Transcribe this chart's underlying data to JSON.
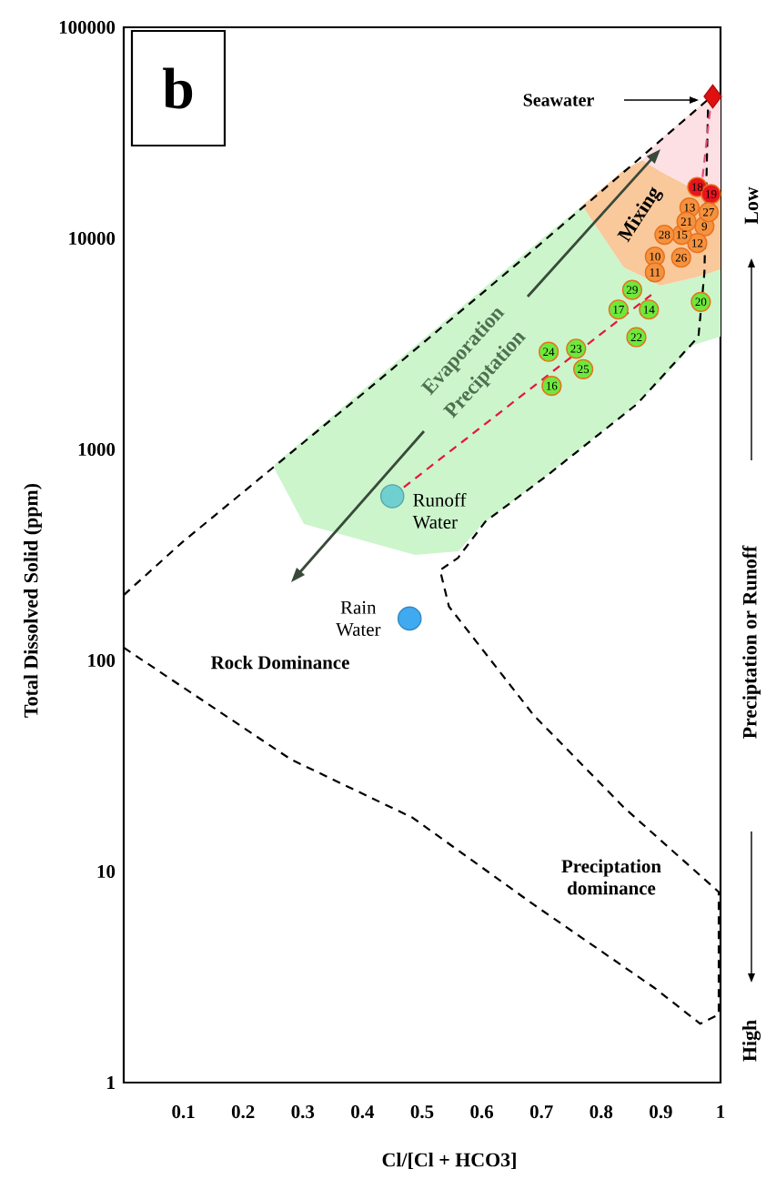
{
  "chart_data": {
    "type": "scatter",
    "xlabel": "Cl/[Cl + HCO3]",
    "ylabel": "Total Dissolved Solid (ppm)",
    "y2label": "Preciptation or Runoff",
    "xlim": [
      0,
      1
    ],
    "ylim": [
      1,
      100000
    ],
    "xticks": [
      0.1,
      0.2,
      0.3,
      0.4,
      0.5,
      0.6,
      0.7,
      0.8,
      0.9,
      1
    ],
    "yticks": [
      1,
      10,
      100,
      1000,
      10000,
      100000
    ],
    "log": "y",
    "series": [
      {
        "type": "area",
        "color": "#ccf5cc",
        "x": [
          0.253,
          0.302,
          0.488,
          0.561,
          0.601,
          0.707,
          0.768,
          0.838,
          0.899,
          0.951,
          1.0
        ],
        "values": [
          null,
          null,
          null,
          null,
          null,
          null,
          null,
          null,
          null,
          null,
          null
        ],
        "lower": [
          804,
          443,
          316,
          329,
          443,
          743,
          1020,
          1460,
          2100,
          3100,
          3420
        ],
        "upper": [
          853,
          1110,
          3090,
          4610,
          5740,
          10300,
          14300,
          7280,
          5970,
          6460,
          7140
        ]
      },
      {
        "type": "area",
        "color": "#f9c89b",
        "x": [
          0.768,
          0.838,
          0.869,
          0.899,
          0.951,
          0.982,
          1.0
        ],
        "values": [
          null,
          null,
          null,
          null,
          null,
          null,
          null
        ],
        "lower": [
          14300,
          7280,
          6590,
          5970,
          6460,
          6860,
          7140
        ],
        "upper": [
          14300,
          21100,
          23500,
          20800,
          17400,
          15200,
          15200
        ]
      },
      {
        "type": "area",
        "color": "#fde0e3",
        "x": [
          0.869,
          0.899,
          0.951,
          0.985,
          1.0
        ],
        "values": [
          null,
          null,
          null,
          null,
          null
        ],
        "lower": [
          23500,
          20800,
          17400,
          15200,
          15200
        ],
        "upper": [
          23500,
          29500,
          39300,
          47000,
          47000
        ]
      },
      {
        "type": "line",
        "color": "#000000",
        "line_style": "dashed",
        "marker": "none",
        "x": [
          0,
          0.098,
          0.402,
          0.677,
          0.985
        ],
        "values": [
          204,
          363,
          1850,
          8360,
          47000
        ]
      },
      {
        "type": "line",
        "color": "#000000",
        "line_style": "dashed",
        "marker": "none",
        "x": [
          0,
          0.28,
          0.484,
          0.686,
          0.89,
          0.966,
          0.997,
          0.997,
          0.839,
          0.687,
          0.545,
          0.53,
          0.56,
          0.606,
          0.707,
          0.86,
          0.963,
          0.973,
          0.979
        ],
        "values": [
          115,
          34,
          18,
          7.0,
          2.8,
          1.9,
          2.1,
          8.0,
          20,
          55,
          180,
          268,
          306,
          455,
          743,
          1640,
          3420,
          6860,
          40900
        ]
      },
      {
        "type": "line",
        "color": "#e8143c",
        "line_style": "dashed",
        "marker": "none",
        "x": [
          0.45,
          0.884
        ],
        "values": [
          600,
          5400
        ]
      },
      {
        "type": "line",
        "color": "#e84a7a",
        "line_style": "dashed",
        "marker": "none",
        "x": [
          0.985,
          0.969
        ],
        "values": [
          47000,
          18500
        ]
      },
      {
        "marker": "diamond",
        "color": "#e01010",
        "x": [
          0.987
        ],
        "values": [
          47000
        ]
      },
      {
        "marker": "circle",
        "color": "#70d0d0",
        "x": [
          0.45
        ],
        "values": [
          600
        ]
      },
      {
        "marker": "circle",
        "color": "#40aaf0",
        "x": [
          0.479
        ],
        "values": [
          158
        ]
      },
      {
        "marker": "circle",
        "x": [
          0.973,
          0.89,
          0.89,
          0.961,
          0.948,
          0.88,
          0.935,
          0.717,
          0.829,
          0.961,
          0.984,
          0.967,
          0.943,
          0.859,
          0.758,
          0.712,
          0.77,
          0.934,
          0.98,
          0.906,
          0.852
        ],
        "values": [
          11400,
          8200,
          6900,
          9500,
          14000,
          4600,
          10400,
          2000,
          4600,
          17500,
          16200,
          5000,
          12000,
          3400,
          3000,
          2900,
          2400,
          8100,
          13300,
          10400,
          5700
        ],
        "colors": [
          "#f5923e",
          "#f5923e",
          "#f5923e",
          "#f5923e",
          "#f5923e",
          "#6ee83c",
          "#f5923e",
          "#6ee83c",
          "#6ee83c",
          "#e8141e",
          "#e8141e",
          "#6ee83c",
          "#f5923e",
          "#6ee83c",
          "#6ee83c",
          "#6ee83c",
          "#6ee83c",
          "#f5923e",
          "#f5923e",
          "#f5923e",
          "#6ee83c"
        ]
      }
    ],
    "annotations": [
      "b",
      "Seawater",
      {
        "text": "Runoff Water",
        "x": 0.45,
        "y": 600
      },
      {
        "text": "Rain Water",
        "x": 0.479,
        "y": 158
      },
      "Evaporation",
      "Preciptation",
      "Mixing",
      "Rock Dominance",
      "Preciptation dominance",
      "High",
      "Low",
      {
        "text": "9",
        "x": 0.973,
        "y": 11400
      },
      {
        "text": "10",
        "x": 0.89,
        "y": 8200
      },
      {
        "text": "11",
        "x": 0.89,
        "y": 6900
      },
      {
        "text": "12",
        "x": 0.961,
        "y": 9500
      },
      {
        "text": "13",
        "x": 0.948,
        "y": 14000
      },
      {
        "text": "14",
        "x": 0.88,
        "y": 4600
      },
      {
        "text": "15",
        "x": 0.935,
        "y": 10400
      },
      {
        "text": "16",
        "x": 0.717,
        "y": 2000
      },
      {
        "text": "17",
        "x": 0.829,
        "y": 4600
      },
      {
        "text": "18",
        "x": 0.961,
        "y": 17500
      },
      {
        "text": "19",
        "x": 0.984,
        "y": 16200
      },
      {
        "text": "20",
        "x": 0.967,
        "y": 5000
      },
      {
        "text": "21",
        "x": 0.943,
        "y": 12000
      },
      {
        "text": "22",
        "x": 0.859,
        "y": 3400
      },
      {
        "text": "23",
        "x": 0.758,
        "y": 3000
      },
      {
        "text": "24",
        "x": 0.712,
        "y": 2900
      },
      {
        "text": "25",
        "x": 0.77,
        "y": 2400
      },
      {
        "text": "26",
        "x": 0.934,
        "y": 8100
      },
      {
        "text": "27",
        "x": 0.98,
        "y": 13300
      },
      {
        "text": "28",
        "x": 0.906,
        "y": 10400
      },
      {
        "text": "29",
        "x": 0.852,
        "y": 5700
      }
    ]
  }
}
